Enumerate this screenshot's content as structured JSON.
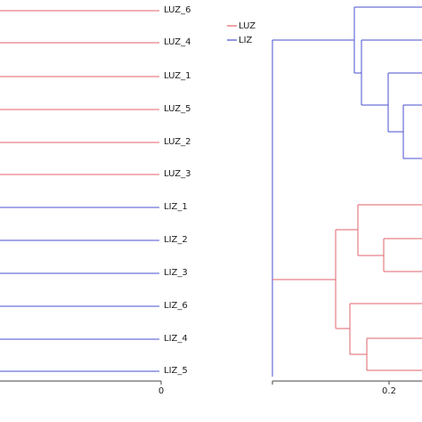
{
  "colors": {
    "LUZ": "#e0636b",
    "LIZ": "#4a4fcf",
    "axis": "#444444"
  },
  "left_panel": {
    "leaves": [
      {
        "label": "LUZ_6",
        "group": "LUZ"
      },
      {
        "label": "LUZ_4",
        "group": "LUZ"
      },
      {
        "label": "LUZ_1",
        "group": "LUZ"
      },
      {
        "label": "LUZ_5",
        "group": "LUZ"
      },
      {
        "label": "LUZ_2",
        "group": "LUZ"
      },
      {
        "label": "LUZ_3",
        "group": "LUZ"
      },
      {
        "label": "LIZ_1",
        "group": "LIZ"
      },
      {
        "label": "LIZ_2",
        "group": "LIZ"
      },
      {
        "label": "LIZ_3",
        "group": "LIZ"
      },
      {
        "label": "LIZ_6",
        "group": "LIZ"
      },
      {
        "label": "LIZ_4",
        "group": "LIZ"
      },
      {
        "label": "LIZ_5",
        "group": "LIZ"
      }
    ],
    "axis_tick": "0"
  },
  "right_panel": {
    "legend": [
      {
        "label": "LUZ",
        "group": "LUZ"
      },
      {
        "label": "LIZ",
        "group": "LIZ"
      }
    ],
    "axis_tick": "0.2"
  }
}
